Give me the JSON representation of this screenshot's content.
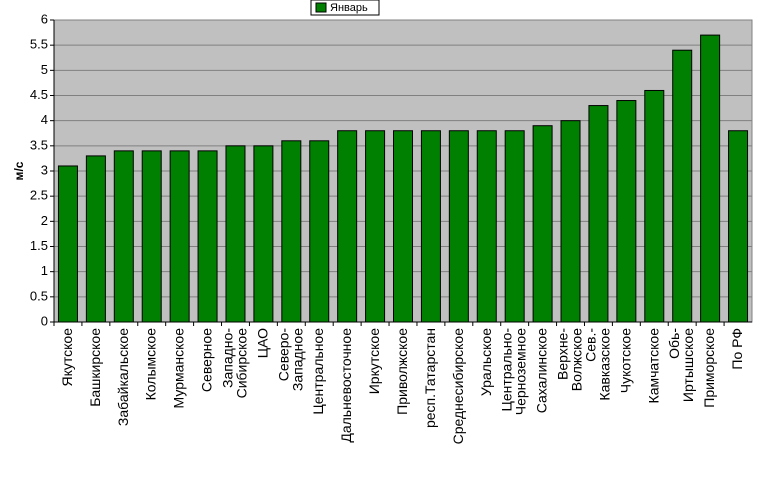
{
  "chart_data": {
    "type": "bar",
    "y_label": "м/с",
    "categories": [
      "Якутское",
      "Башкирское",
      "Забайкальское",
      "Колымское",
      "Мурманское",
      "Северное",
      "Западно-\nСибирское",
      "ЦАО",
      "Северо-\nЗападное",
      "Центральное",
      "Дальневосточное",
      "Иркутское",
      "Приволжское",
      "респ.Татарстан",
      "Среднесибирское",
      "Уральское",
      "Центрально-\nЧерноземное",
      "Сахалинское",
      "Верхне-\nВолжское",
      "Сев.-\nКавказское",
      "Чукотское",
      "Камчатское",
      "Обь-\nИртышское",
      "Приморское",
      "По РФ"
    ],
    "series": [
      {
        "name": "Январь",
        "color": "#008000",
        "values": [
          3.1,
          3.3,
          3.4,
          3.4,
          3.4,
          3.4,
          3.5,
          3.5,
          3.6,
          3.6,
          3.8,
          3.8,
          3.8,
          3.8,
          3.8,
          3.8,
          3.8,
          3.9,
          4.0,
          4.3,
          4.4,
          4.6,
          5.4,
          5.7,
          3.8
        ]
      }
    ],
    "ylim": [
      0,
      6
    ],
    "yticks": [
      0,
      0.5,
      1,
      1.5,
      2,
      2.5,
      3,
      3.5,
      4,
      4.5,
      5,
      5.5,
      6
    ],
    "grid": true
  }
}
